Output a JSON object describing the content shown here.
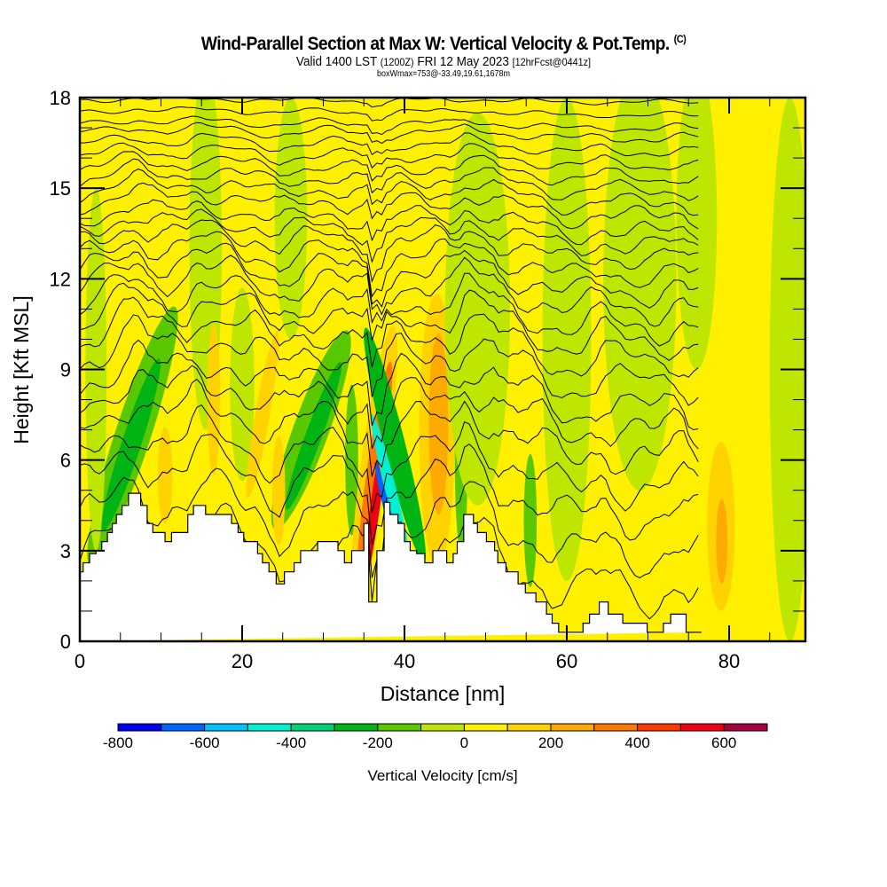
{
  "header": {
    "title": "Wind-Parallel Section at Max W: Vertical Velocity & Pot.Temp.",
    "copyright": "(C)",
    "valid_prefix": "Valid 1400 LST",
    "valid_utc": "(1200Z)",
    "valid_date": "FRI 12 May 2023",
    "forecast": "[12hrFcst@0441z]",
    "boxwmax": "boxWmax=753@-33.49,19.61,1678m"
  },
  "chart_data": {
    "type": "heatmap",
    "title": "Wind-Parallel Section at Max W: Vertical Velocity & Pot.Temp.",
    "xlabel": "Distance [nm]",
    "ylabel": "Height [Kft MSL]",
    "xlim": [
      0,
      89.4
    ],
    "ylim": [
      0,
      18
    ],
    "x_ticks": [
      "0",
      "20",
      "40",
      "60",
      "80"
    ],
    "x_tick_values": [
      0,
      20,
      40,
      60,
      80
    ],
    "x_minor_step": 5,
    "y_ticks": [
      "0",
      "3",
      "6",
      "9",
      "12",
      "15",
      "18"
    ],
    "y_tick_values": [
      0,
      3,
      6,
      9,
      12,
      15,
      18
    ],
    "y_minor_step": 1,
    "colorbar": {
      "label": "Vertical Velocity [cm/s]",
      "bounds": [
        -800,
        -700,
        -600,
        -500,
        -400,
        -300,
        -200,
        -100,
        0,
        100,
        200,
        300,
        400,
        500,
        600,
        700
      ],
      "tick_labels": [
        "-800",
        "-600",
        "-400",
        "-200",
        "0",
        "200",
        "400",
        "600"
      ],
      "tick_values": [
        -800,
        -600,
        -400,
        -200,
        0,
        200,
        400,
        600
      ],
      "colors": [
        "#0000f5",
        "#0064ff",
        "#00c3ff",
        "#00f0d2",
        "#00d278",
        "#00b414",
        "#5ac800",
        "#bee600",
        "#fff000",
        "#ffd200",
        "#ffaa00",
        "#ff7800",
        "#ff3700",
        "#f00014",
        "#a50041"
      ]
    },
    "background_value": 50,
    "features": [
      {
        "x": 6.5,
        "y": 6.8,
        "rx": 2.2,
        "ry": 4.5,
        "tilt": 18,
        "value": -150
      },
      {
        "x": 6.3,
        "y": 6.5,
        "rx": 1.2,
        "ry": 3.0,
        "tilt": 18,
        "value": -250
      },
      {
        "x": 2.0,
        "y": 9.0,
        "rx": 1.3,
        "ry": 6.0,
        "tilt": 0,
        "value": -50
      },
      {
        "x": 10.5,
        "y": 5.5,
        "rx": 0.9,
        "ry": 1.6,
        "tilt": 0,
        "value": 150
      },
      {
        "x": 15.5,
        "y": 13.0,
        "rx": 2.0,
        "ry": 6.0,
        "tilt": 0,
        "value": -50
      },
      {
        "x": 16.5,
        "y": 8.0,
        "rx": 0.8,
        "ry": 2.5,
        "tilt": 0,
        "value": 150
      },
      {
        "x": 20.0,
        "y": 8.5,
        "rx": 1.5,
        "ry": 3.2,
        "tilt": 0,
        "value": -50
      },
      {
        "x": 22.5,
        "y": 7.5,
        "rx": 0.9,
        "ry": 2.8,
        "tilt": 10,
        "value": 150
      },
      {
        "x": 28.5,
        "y": 7.0,
        "rx": 2.2,
        "ry": 3.5,
        "tilt": 20,
        "value": -150
      },
      {
        "x": 28.8,
        "y": 6.8,
        "rx": 1.0,
        "ry": 2.6,
        "tilt": 20,
        "value": -250
      },
      {
        "x": 26.0,
        "y": 14.0,
        "rx": 2.0,
        "ry": 4.0,
        "tilt": 0,
        "value": -50
      },
      {
        "x": 24.5,
        "y": 5.0,
        "rx": 0.8,
        "ry": 1.8,
        "tilt": 0,
        "value": 150
      },
      {
        "x": 33.5,
        "y": 6.0,
        "rx": 0.8,
        "ry": 2.5,
        "tilt": 0,
        "value": -150
      },
      {
        "x": 36.3,
        "y": 6.0,
        "rx": 1.6,
        "ry": 4.5,
        "tilt": 8,
        "value": 150
      },
      {
        "x": 36.3,
        "y": 5.5,
        "rx": 1.0,
        "ry": 3.8,
        "tilt": 8,
        "value": 350
      },
      {
        "x": 36.4,
        "y": 4.5,
        "rx": 0.6,
        "ry": 2.8,
        "tilt": 8,
        "value": 550
      },
      {
        "x": 38.8,
        "y": 6.5,
        "rx": 1.3,
        "ry": 4.0,
        "tilt": -14,
        "value": -250
      },
      {
        "x": 38.3,
        "y": 5.0,
        "rx": 0.7,
        "ry": 2.6,
        "tilt": -14,
        "value": -450
      },
      {
        "x": 38.0,
        "y": 4.2,
        "rx": 0.4,
        "ry": 1.8,
        "tilt": -14,
        "value": -650
      },
      {
        "x": 44.0,
        "y": 7.0,
        "rx": 2.2,
        "ry": 4.5,
        "tilt": 0,
        "value": 150
      },
      {
        "x": 44.2,
        "y": 7.2,
        "rx": 1.2,
        "ry": 3.0,
        "tilt": 0,
        "value": 250
      },
      {
        "x": 47.0,
        "y": 6.0,
        "rx": 0.8,
        "ry": 3.0,
        "tilt": 0,
        "value": -150
      },
      {
        "x": 49.0,
        "y": 11.0,
        "rx": 4.0,
        "ry": 6.5,
        "tilt": 0,
        "value": -50
      },
      {
        "x": 55.5,
        "y": 4.0,
        "rx": 0.8,
        "ry": 2.2,
        "tilt": 0,
        "value": -150
      },
      {
        "x": 60.0,
        "y": 10.0,
        "rx": 3.0,
        "ry": 8.0,
        "tilt": 0,
        "value": -50
      },
      {
        "x": 69.0,
        "y": 12.0,
        "rx": 4.5,
        "ry": 7.0,
        "tilt": 0,
        "value": -50
      },
      {
        "x": 79.0,
        "y": 3.8,
        "rx": 1.7,
        "ry": 2.8,
        "tilt": 0,
        "value": 150
      },
      {
        "x": 79.1,
        "y": 3.3,
        "rx": 0.7,
        "ry": 1.4,
        "tilt": 0,
        "value": 250
      },
      {
        "x": 76.0,
        "y": 14.0,
        "rx": 2.5,
        "ry": 5.0,
        "tilt": 0,
        "value": -50
      },
      {
        "x": 87.5,
        "y": 9.0,
        "rx": 2.5,
        "ry": 9.0,
        "tilt": 0,
        "value": -50
      }
    ],
    "terrain": {
      "x": [
        0,
        0.4,
        0.4,
        1.2,
        1.2,
        2.0,
        2.0,
        2.7,
        2.7,
        3.4,
        3.4,
        4.0,
        4.0,
        4.5,
        4.5,
        5.2,
        5.2,
        6.0,
        6.0,
        7.5,
        7.5,
        8.3,
        8.3,
        9.0,
        9.0,
        10.5,
        10.5,
        11.3,
        11.3,
        13.3,
        13.3,
        14.0,
        14.0,
        15.5,
        15.5,
        18.7,
        18.7,
        19.5,
        19.5,
        20.2,
        20.2,
        21.9,
        21.9,
        22.5,
        22.5,
        23.3,
        23.3,
        24.2,
        24.2,
        25.2,
        25.2,
        26.4,
        26.4,
        27.2,
        27.2,
        29.3,
        29.3,
        31.8,
        31.8,
        32.6,
        32.6,
        33.5,
        33.5,
        35.0,
        35.0,
        35.6,
        35.6,
        36.6,
        36.6,
        37.5,
        37.5,
        38.2,
        38.2,
        39.2,
        39.2,
        40.0,
        40.0,
        40.7,
        40.7,
        41.5,
        41.5,
        42.5,
        42.5,
        43.5,
        43.5,
        45.2,
        45.2,
        46.0,
        46.0,
        46.5,
        46.5,
        47.3,
        47.3,
        48.5,
        48.5,
        49.0,
        49.0,
        50.1,
        50.1,
        51.1,
        51.1,
        51.5,
        51.5,
        52.5,
        52.5,
        54.0,
        54.0,
        54.9,
        54.9,
        56.2,
        56.2,
        57.5,
        57.5,
        58.2,
        58.2,
        59.0,
        59.0,
        60.3,
        60.3,
        62.0,
        62.0,
        62.8,
        62.8,
        63.6,
        63.6,
        64.0,
        64.0,
        65.1,
        65.1,
        66.9,
        66.9,
        67.8,
        67.8,
        69.9,
        69.9,
        71.9,
        71.9,
        72.8,
        72.8,
        74.7,
        74.7,
        76.6,
        76.6,
        89.4
      ],
      "h": [
        2.3,
        2.3,
        2.6,
        2.6,
        2.9,
        2.9,
        3.0,
        3.0,
        3.3,
        3.3,
        3.6,
        3.6,
        3.9,
        3.9,
        4.2,
        4.2,
        4.5,
        4.5,
        4.9,
        4.9,
        4.5,
        4.5,
        3.9,
        3.9,
        3.6,
        3.6,
        3.3,
        3.3,
        3.6,
        3.6,
        4.2,
        4.2,
        4.5,
        4.5,
        4.2,
        4.2,
        3.9,
        3.9,
        3.6,
        3.6,
        3.3,
        3.3,
        2.9,
        2.9,
        2.6,
        2.6,
        2.3,
        2.3,
        1.9,
        1.9,
        2.3,
        2.3,
        2.6,
        2.6,
        3.0,
        3.0,
        3.3,
        3.3,
        3.0,
        3.0,
        2.6,
        2.6,
        3.0,
        3.0,
        3.9,
        3.9,
        1.3,
        1.3,
        3.0,
        3.0,
        4.6,
        4.6,
        4.2,
        4.2,
        3.9,
        3.9,
        3.3,
        3.3,
        3.0,
        3.0,
        2.9,
        2.9,
        2.6,
        2.6,
        3.0,
        3.0,
        2.6,
        2.6,
        2.9,
        2.9,
        3.3,
        3.3,
        4.2,
        4.2,
        3.9,
        3.9,
        3.6,
        3.6,
        3.3,
        3.3,
        3.0,
        3.0,
        2.6,
        2.6,
        2.3,
        2.3,
        1.9,
        1.9,
        1.6,
        1.6,
        1.3,
        1.3,
        0.9,
        0.9,
        0.6,
        0.6,
        0.3,
        0.3,
        0.3,
        0.3,
        0.6,
        0.6,
        0.9,
        0.9,
        0.9,
        0.9,
        1.3,
        1.3,
        0.9,
        0.9,
        0.6,
        0.6,
        0.6,
        0.6,
        0.3,
        0.3,
        0.6,
        0.6,
        0.9,
        0.9,
        0.3,
        0.3
      ]
    },
    "isentropes": {
      "count": 28,
      "base_heights": [
        2.6,
        3.8,
        5.0,
        5.9,
        6.9,
        7.7,
        8.4,
        9.2,
        9.9,
        10.5,
        11.0,
        11.6,
        12.1,
        12.6,
        13.1,
        13.5,
        13.9,
        14.4,
        14.8,
        15.2,
        15.6,
        16.0,
        16.4,
        16.8,
        17.1,
        17.5,
        17.9,
        18.2
      ]
    }
  },
  "colorbar": {
    "label": "Vertical Velocity [cm/s]"
  }
}
